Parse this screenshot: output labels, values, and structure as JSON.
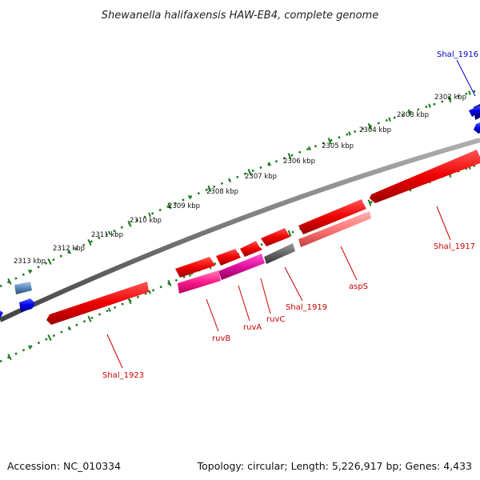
{
  "title": "Shewanella halifaxensis HAW-EB4, complete genome",
  "footer": {
    "accession": "Accession: NC_010334",
    "summary": "Topology: circular; Length: 5,226,917 bp; Genes: 4,433"
  },
  "tick_labels": [
    "2302 kbp",
    "2303 kbp",
    "2304 kbp",
    "2305 kbp",
    "2306 kbp",
    "2307 kbp",
    "2308 kbp",
    "2309 kbp",
    "2310 kbp",
    "2311 kbp",
    "2312 kbp",
    "2313 kbp"
  ],
  "gene_labels": [
    "Shal_1916",
    "Shal_1917",
    "aspS",
    "Shal_1919",
    "ruvC",
    "ruvA",
    "ruvB",
    "Shal_1923"
  ],
  "colors": {
    "forward_gene": "#ff0000",
    "reverse_gene": "#ff0000",
    "rna_gene": "#ff6f6f",
    "ruv_complex": "#ff1493",
    "pseudo_gene": "#666666",
    "neighbor_gene": "#0000ff",
    "label_red": "#cc0000",
    "label_blue": "#0000cc",
    "tick_green": "#1a7a1a",
    "backbone": "#777777"
  }
}
